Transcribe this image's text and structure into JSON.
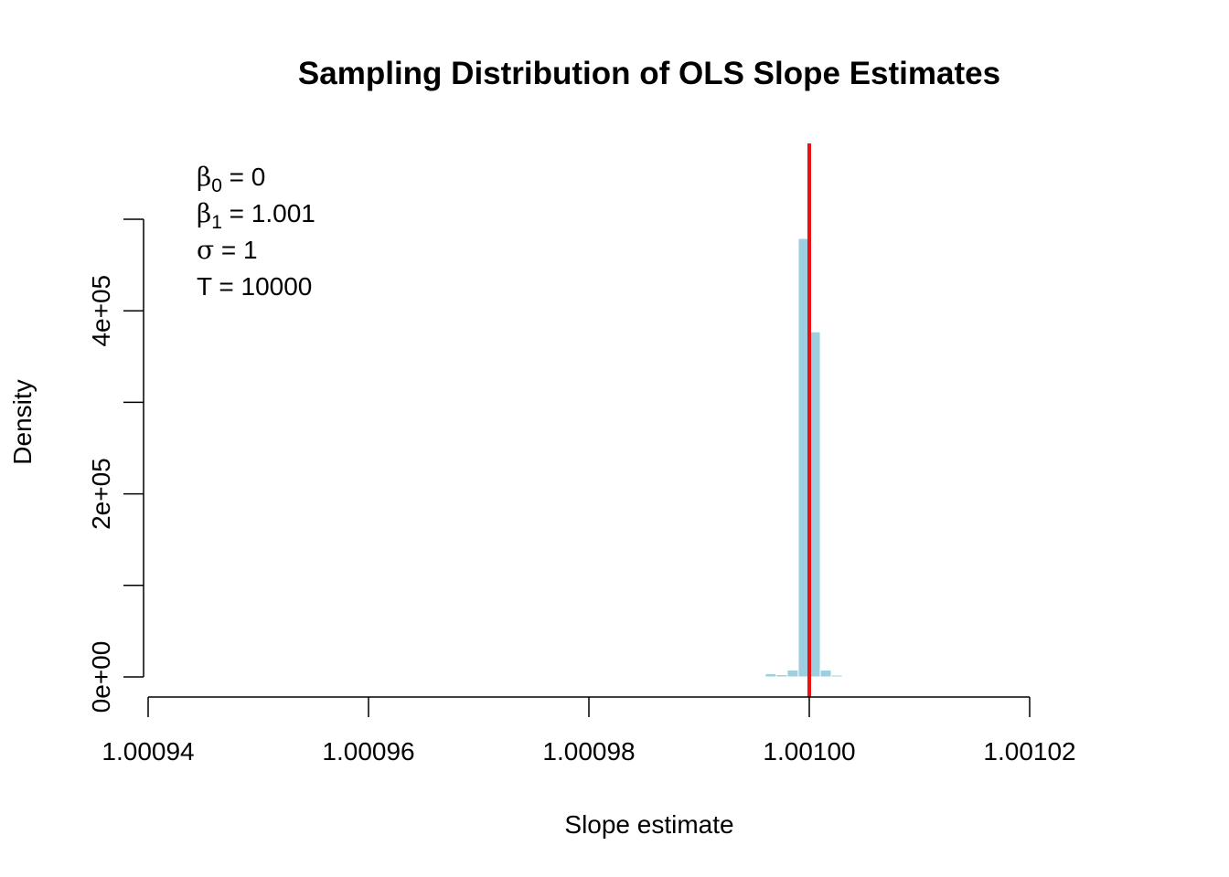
{
  "chart_data": {
    "type": "bar",
    "title": "Sampling Distribution of OLS Slope Estimates",
    "xlabel": "Slope estimate",
    "ylabel": "Density",
    "xlim": [
      1.00094,
      1.00102
    ],
    "ylim": [
      0,
      500000
    ],
    "x_ticks": [
      {
        "value": 1.00094,
        "label": "1.00094"
      },
      {
        "value": 1.00096,
        "label": "1.00096"
      },
      {
        "value": 1.00098,
        "label": "1.00098"
      },
      {
        "value": 1.001,
        "label": "1.00100"
      },
      {
        "value": 1.00102,
        "label": "1.00102"
      }
    ],
    "y_ticks": [
      {
        "value": 0,
        "label": "0e+00"
      },
      {
        "value": 100000,
        "label": ""
      },
      {
        "value": 200000,
        "label": "2e+05"
      },
      {
        "value": 300000,
        "label": ""
      },
      {
        "value": 400000,
        "label": "4e+05"
      },
      {
        "value": 500000,
        "label": ""
      }
    ],
    "bin_width": 1e-06,
    "bins": [
      {
        "start": 1.000992,
        "density": 500
      },
      {
        "start": 1.000993,
        "density": 0
      },
      {
        "start": 1.000994,
        "density": 0
      },
      {
        "start": 1.000995,
        "density": 700
      },
      {
        "start": 1.000996,
        "density": 3500
      },
      {
        "start": 1.000997,
        "density": 2500
      },
      {
        "start": 1.000998,
        "density": 7500
      },
      {
        "start": 1.000999,
        "density": 479000
      },
      {
        "start": 1.001,
        "density": 377000
      },
      {
        "start": 1.001001,
        "density": 7500
      },
      {
        "start": 1.001002,
        "density": 2000
      },
      {
        "start": 1.001003,
        "density": 800
      },
      {
        "start": 1.001004,
        "density": 500
      }
    ],
    "bar_color": "#9ecfe0",
    "reference_line": {
      "x": 1.001,
      "color": "#ee1111"
    },
    "legend": {
      "position": "top-left",
      "entries": [
        {
          "symbol": "β",
          "subscript": "0",
          "text": " = 0"
        },
        {
          "symbol": "β",
          "subscript": "1",
          "text": " = 1.001"
        },
        {
          "symbol": "σ",
          "subscript": "",
          "text": " = 1"
        },
        {
          "symbol": "T",
          "subscript": "",
          "text": " = 10000"
        }
      ]
    },
    "grid": false
  }
}
